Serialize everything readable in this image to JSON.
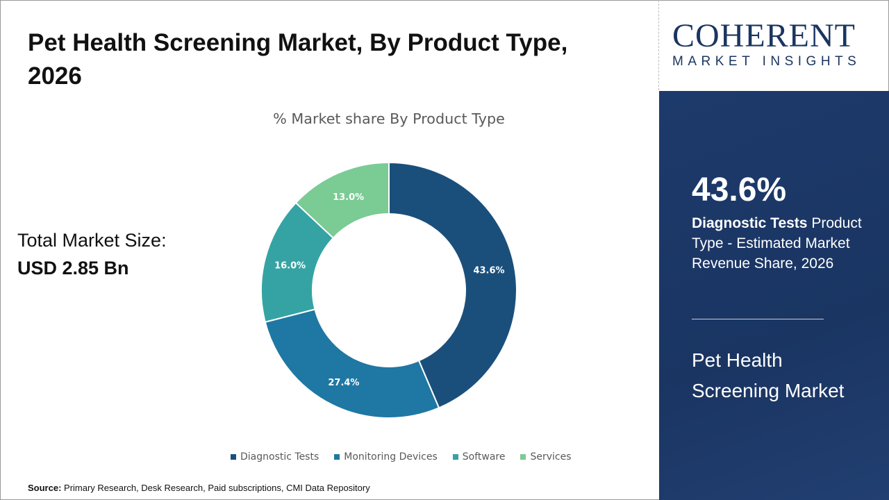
{
  "title": "Pet Health Screening Market, By Product Type, 2026",
  "total": {
    "label": "Total Market Size:",
    "value": "USD 2.85 Bn"
  },
  "source": {
    "label": "Source:",
    "text": " Primary Research, Desk Research, Paid subscriptions, CMI Data Repository"
  },
  "logo": {
    "top": "COHERENT",
    "bottom": "MARKET INSIGHTS"
  },
  "panel": {
    "pct": "43.6%",
    "desc_bold": "Diagnostic Tests",
    "desc_rest": "  Product Type - Estimated Market Revenue Share, 2026",
    "market": "Pet Health Screening Market"
  },
  "chart_data": {
    "type": "donut",
    "title": "% Market share By Product Type",
    "categories": [
      "Diagnostic Tests",
      "Monitoring Devices",
      "Software",
      "Services"
    ],
    "values": [
      43.6,
      27.4,
      16.0,
      13.0
    ],
    "labels": [
      "43.6%",
      "27.4%",
      "16.0%",
      "13.0%"
    ],
    "colors": [
      "#1b4f7b",
      "#1f77a3",
      "#35a3a3",
      "#7acb94"
    ],
    "legend_position": "bottom"
  }
}
